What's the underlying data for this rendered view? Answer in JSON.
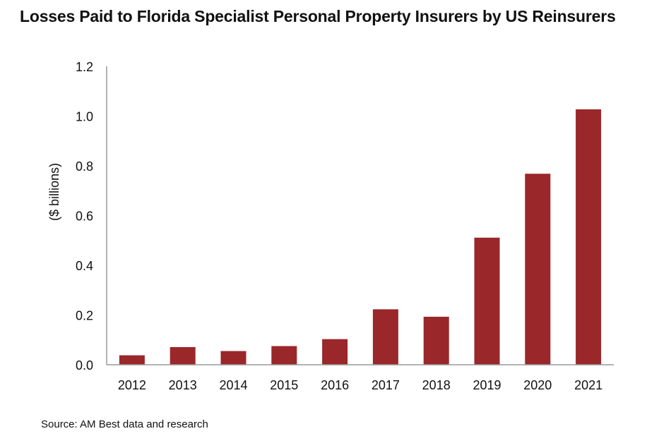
{
  "chart_data": {
    "type": "bar",
    "title": "Losses Paid to Florida Specialist Personal Property Insurers by US Reinsurers",
    "xlabel": "",
    "ylabel": "($ billions)",
    "categories": [
      "2012",
      "2013",
      "2014",
      "2015",
      "2016",
      "2017",
      "2018",
      "2019",
      "2020",
      "2021"
    ],
    "values": [
      0.038,
      0.071,
      0.055,
      0.075,
      0.103,
      0.223,
      0.193,
      0.511,
      0.768,
      1.027
    ],
    "ylim": [
      0,
      1.2
    ],
    "yticks": [
      "0.0",
      "0.2",
      "0.4",
      "0.6",
      "0.8",
      "1.0",
      "1.2"
    ],
    "grid": false,
    "legend": "none",
    "bar_color": "#9a2729",
    "source": "Source: AM Best data and research"
  }
}
